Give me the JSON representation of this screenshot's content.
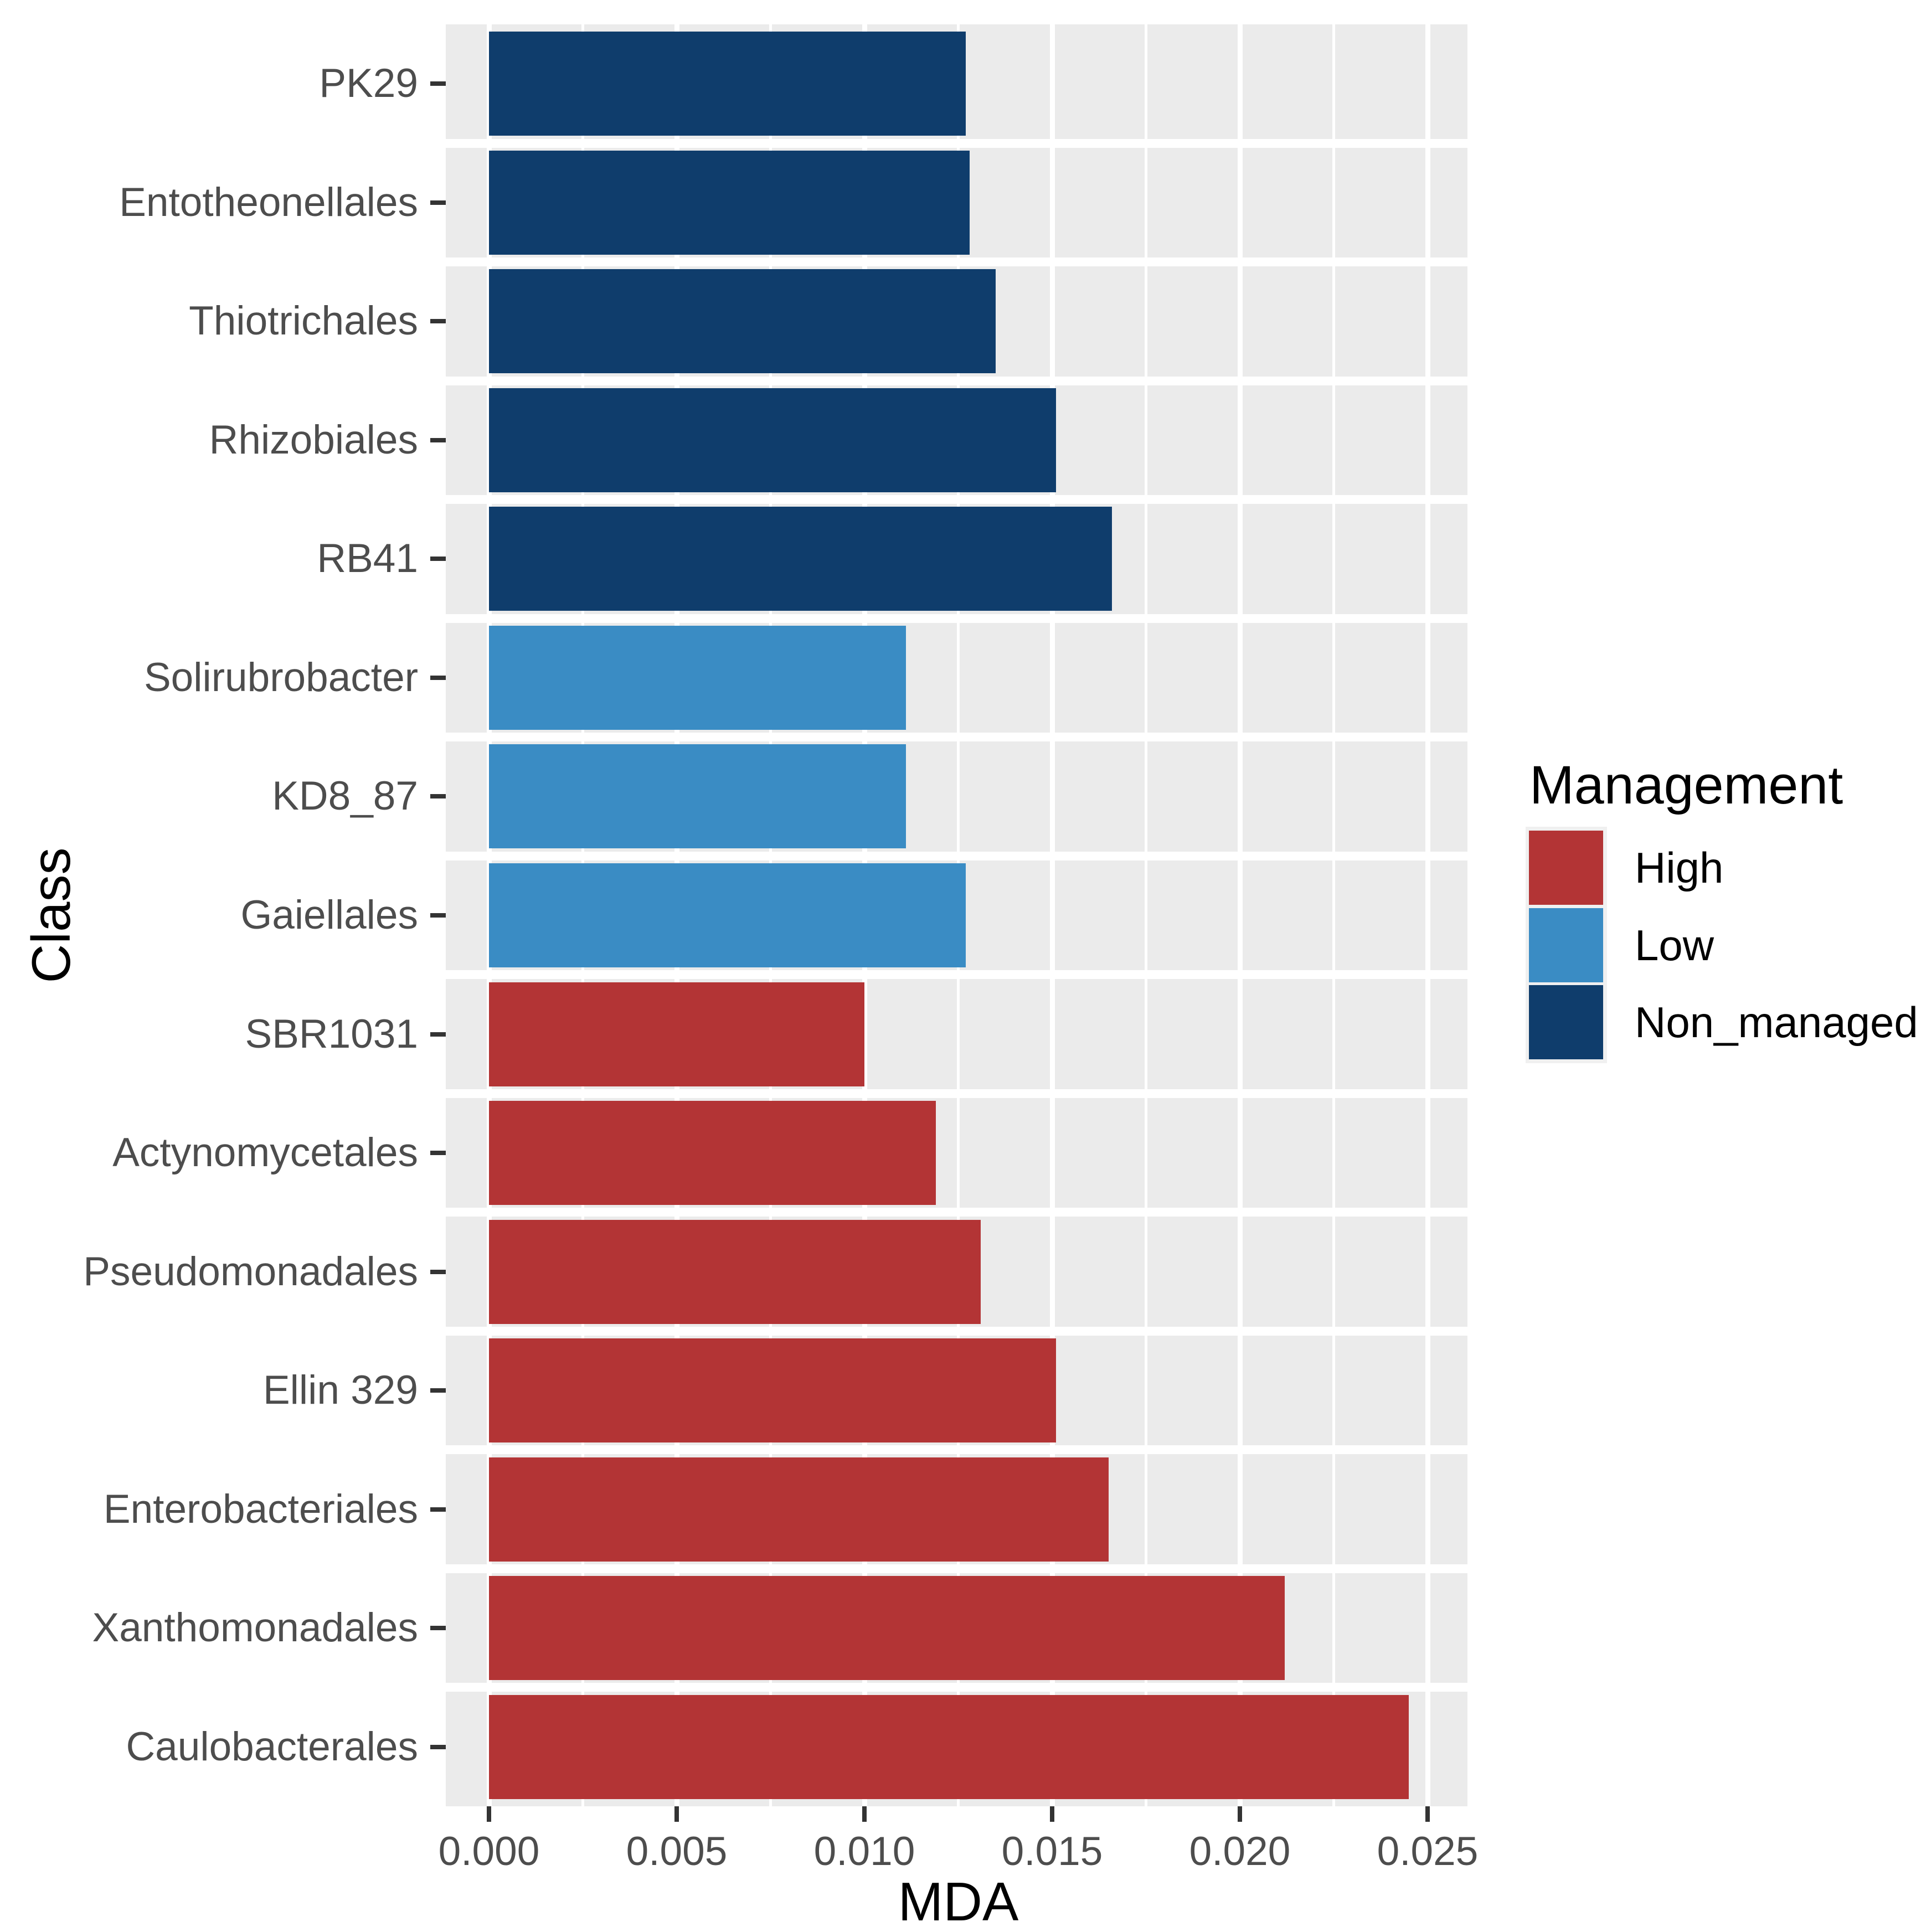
{
  "chart_data": {
    "type": "bar",
    "orientation": "horizontal",
    "xlabel": "MDA",
    "ylabel": "Class",
    "xlim": [
      0,
      0.025
    ],
    "x_ticks": [
      0,
      0.005,
      0.01,
      0.015,
      0.02,
      0.025
    ],
    "x_tick_labels": [
      "0.000",
      "0.005",
      "0.010",
      "0.015",
      "0.020",
      "0.025"
    ],
    "grid": "major and minor vertical white gridlines, white row separators, gray panel",
    "legend_position": "right",
    "legend_title": "Management",
    "series_name": "MDA",
    "categories_top_to_bottom": [
      "PK29",
      "Entotheonellales",
      "Thiotrichales",
      "Rhizobiales",
      "RB41",
      "Solirubrobacter",
      "KD8_87",
      "Gaiellales",
      "SBR1031",
      "Actynomycetales",
      "Pseudomonadales",
      "Ellin 329",
      "Enterobacteriales",
      "Xanthomonadales",
      "Caulobacterales"
    ],
    "rows": [
      {
        "class": "PK29",
        "management": "Non_managed",
        "mda": 0.0127
      },
      {
        "class": "Entotheonellales",
        "management": "Non_managed",
        "mda": 0.0128
      },
      {
        "class": "Thiotrichales",
        "management": "Non_managed",
        "mda": 0.0135
      },
      {
        "class": "Rhizobiales",
        "management": "Non_managed",
        "mda": 0.0151
      },
      {
        "class": "RB41",
        "management": "Non_managed",
        "mda": 0.0166
      },
      {
        "class": "Solirubrobacter",
        "management": "Low",
        "mda": 0.0111
      },
      {
        "class": "KD8_87",
        "management": "Low",
        "mda": 0.0111
      },
      {
        "class": "Gaiellales",
        "management": "Low",
        "mda": 0.0127
      },
      {
        "class": "SBR1031",
        "management": "High",
        "mda": 0.01
      },
      {
        "class": "Actynomycetales",
        "management": "High",
        "mda": 0.0119
      },
      {
        "class": "Pseudomonadales",
        "management": "High",
        "mda": 0.0131
      },
      {
        "class": "Ellin 329",
        "management": "High",
        "mda": 0.0151
      },
      {
        "class": "Enterobacteriales",
        "management": "High",
        "mda": 0.0165
      },
      {
        "class": "Xanthomonadales",
        "management": "High",
        "mda": 0.0212
      },
      {
        "class": "Caulobacterales",
        "management": "High",
        "mda": 0.0245
      }
    ],
    "groups": [
      {
        "name": "High",
        "color": "#B33435"
      },
      {
        "name": "Low",
        "color": "#3A8CC4"
      },
      {
        "name": "Non_managed",
        "color": "#0F3D6C"
      }
    ]
  },
  "axes": {
    "x_title": "MDA",
    "y_title": "Class"
  },
  "legend": {
    "title": "Management",
    "entries": [
      {
        "label": "High"
      },
      {
        "label": "Low"
      },
      {
        "label": "Non_managed"
      }
    ]
  },
  "colors": {
    "background": "#FFFFFF",
    "panel_bg": "#EBEBEB",
    "gridline": "#FFFFFF",
    "tick_mark": "#333333",
    "tick_label": "#4D4D4D",
    "axis_title": "#000000",
    "legend_key_bg": "#F0F0F0",
    "high": "#B33435",
    "low": "#3A8CC4",
    "non_managed": "#0F3D6C"
  }
}
